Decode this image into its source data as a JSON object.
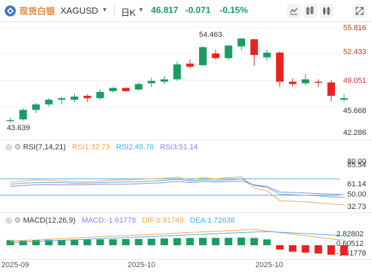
{
  "header": {
    "brand": "现货白银",
    "symbol": "XAGUSD",
    "period": "日K",
    "price": "46.817",
    "change": "-0.071",
    "change_pct": "-0.15%",
    "color_up": "#1a9c63",
    "color_down": "#e8231f",
    "color_brand": "#e08a3c",
    "toolbar_icons": [
      "indicator-icon",
      "compare-icon",
      "settings-icon",
      "fullscreen-icon"
    ]
  },
  "price_pane": {
    "y_labels": [
      "55.816",
      "52.433",
      "49.051",
      "45.668",
      "42.286"
    ],
    "high_label": "54.463",
    "low_label": "43.639"
  },
  "rsi_pane": {
    "title": "RSI(7,14,21)",
    "rsi1": "RSI1:32.73",
    "rsi2": "RSI2:45.76",
    "rsi3": "RSI3:51.14",
    "y_labels": [
      "80.00",
      "85.54",
      "61.14",
      "50.00",
      "32.73"
    ],
    "colors": [
      "#f2a54a",
      "#3fb0e0",
      "#9a7be6"
    ]
  },
  "macd_pane": {
    "title": "MACD(12,26,9)",
    "macd": "MACD:-1.61778",
    "dif": "DIF:0.91749",
    "dea": "DEA:1.72638",
    "y_labels": [
      "2.82802",
      "0.60512",
      "-1.61778"
    ]
  },
  "x_labels": [
    "2025-09",
    "2025-10",
    "2025-10"
  ],
  "chart_data": {
    "type": "candlestick",
    "x": [
      "2025-09",
      "2025-10",
      "2025-10"
    ],
    "candles": [
      {
        "o": 43.9,
        "h": 44.3,
        "l": 43.64,
        "c": 44.0
      },
      {
        "o": 44.1,
        "h": 45.5,
        "l": 43.9,
        "c": 45.3
      },
      {
        "o": 45.3,
        "h": 46.2,
        "l": 44.9,
        "c": 46.0
      },
      {
        "o": 46.0,
        "h": 46.8,
        "l": 45.7,
        "c": 46.6
      },
      {
        "o": 46.6,
        "h": 47.0,
        "l": 46.0,
        "c": 46.8
      },
      {
        "o": 46.6,
        "h": 47.4,
        "l": 46.3,
        "c": 47.0
      },
      {
        "o": 47.1,
        "h": 47.3,
        "l": 46.3,
        "c": 46.8
      },
      {
        "o": 46.8,
        "h": 47.9,
        "l": 46.6,
        "c": 47.6
      },
      {
        "o": 47.7,
        "h": 48.2,
        "l": 47.5,
        "c": 48.1
      },
      {
        "o": 48.1,
        "h": 48.2,
        "l": 47.6,
        "c": 47.7
      },
      {
        "o": 47.9,
        "h": 48.8,
        "l": 47.8,
        "c": 48.6
      },
      {
        "o": 48.7,
        "h": 49.4,
        "l": 48.2,
        "c": 49.0
      },
      {
        "o": 48.9,
        "h": 49.6,
        "l": 48.6,
        "c": 49.2
      },
      {
        "o": 49.2,
        "h": 51.5,
        "l": 49.0,
        "c": 51.1
      },
      {
        "o": 51.2,
        "h": 51.7,
        "l": 50.6,
        "c": 50.8
      },
      {
        "o": 51.0,
        "h": 53.4,
        "l": 50.9,
        "c": 53.3
      },
      {
        "o": 52.5,
        "h": 53.0,
        "l": 51.7,
        "c": 51.9
      },
      {
        "o": 51.9,
        "h": 53.6,
        "l": 51.7,
        "c": 53.5
      },
      {
        "o": 53.4,
        "h": 54.46,
        "l": 52.9,
        "c": 54.4
      },
      {
        "o": 54.3,
        "h": 54.4,
        "l": 50.9,
        "c": 52.3
      },
      {
        "o": 52.0,
        "h": 53.0,
        "l": 51.6,
        "c": 52.6
      },
      {
        "o": 52.6,
        "h": 52.8,
        "l": 48.2,
        "c": 48.9
      },
      {
        "o": 48.9,
        "h": 49.3,
        "l": 48.3,
        "c": 48.6
      },
      {
        "o": 48.7,
        "h": 49.9,
        "l": 48.4,
        "c": 49.2
      },
      {
        "o": 48.9,
        "h": 49.2,
        "l": 48.2,
        "c": 48.8
      },
      {
        "o": 48.8,
        "h": 49.1,
        "l": 46.4,
        "c": 47.1
      },
      {
        "o": 46.6,
        "h": 47.3,
        "l": 46.4,
        "c": 46.8
      }
    ],
    "rsi_levels": [
      80,
      50
    ],
    "macd_hist": [
      0.82,
      0.8,
      0.83,
      0.85,
      0.88,
      0.9,
      0.92,
      0.95,
      0.97,
      1.0,
      1.02,
      1.06,
      1.1,
      1.15,
      1.18,
      1.2,
      1.18,
      1.2,
      1.25,
      1.18,
      0.95,
      -0.7,
      -1.05,
      -1.2,
      -1.35,
      -1.55,
      -1.62
    ]
  }
}
